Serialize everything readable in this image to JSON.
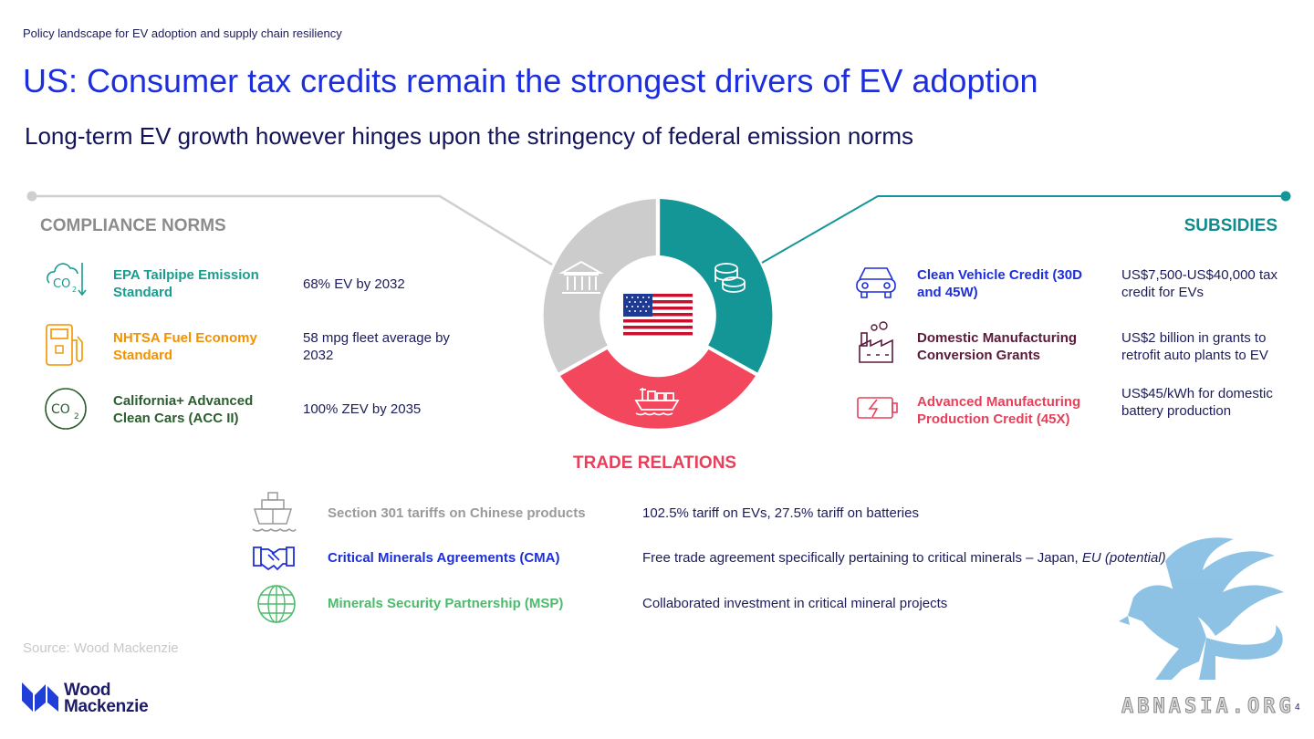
{
  "header": {
    "kicker": "Policy landscape for EV adoption and supply chain resiliency",
    "title": "US: Consumer tax credits remain the strongest drivers of EV adoption",
    "subtitle": "Long-term EV growth however hinges upon the stringency of federal emission norms"
  },
  "compliance": {
    "heading": "COMPLIANCE NORMS",
    "color": "#8c8c8c",
    "items": [
      {
        "icon": "co2-down-icon",
        "label": "EPA Tailpipe Emission Standard",
        "value": "68% EV by 2032",
        "color": "#1a9c8f"
      },
      {
        "icon": "fuel-pump-icon",
        "label": "NHTSA Fuel Economy Standard",
        "value": "58 mpg fleet average by 2032",
        "color": "#f39200"
      },
      {
        "icon": "co2-circle-icon",
        "label": "California+ Advanced Clean Cars (ACC II)",
        "value": "100% ZEV by 2035",
        "color": "#2b5e2f"
      }
    ]
  },
  "subsidies": {
    "heading": "SUBSIDIES",
    "color": "#0f8d8d",
    "items": [
      {
        "icon": "car-icon",
        "label": "Clean Vehicle Credit (30D and 45W)",
        "value": "US$7,500-US$40,000 tax credit for EVs",
        "color": "#1d2fdd"
      },
      {
        "icon": "factory-icon",
        "label": "Domestic Manufacturing Conversion Grants",
        "value": "US$2 billion in grants to retrofit auto plants to EV",
        "color": "#5a1a3a"
      },
      {
        "icon": "battery-charging-icon",
        "label": "Advanced Manufacturing Production Credit (45X)",
        "value": "US$45/kWh for domestic battery production",
        "color": "#e8405a"
      }
    ]
  },
  "trade": {
    "heading": "TRADE RELATIONS",
    "color": "#e8405a",
    "items": [
      {
        "icon": "ship-icon",
        "label": "Section 301 tariffs on Chinese products",
        "value": "102.5% tariff on EVs, 27.5% tariff on batteries",
        "color": "#9a9a9a"
      },
      {
        "icon": "handshake-icon",
        "label": "Critical Minerals Agreements (CMA)",
        "value": "Free trade agreement specifically pertaining to critical minerals – Japan,",
        "value_em": "EU (potential)",
        "color": "#1d2fdd"
      },
      {
        "icon": "globe-icon",
        "label": "Minerals Security Partnership (MSP)",
        "value": "Collaborated investment in critical mineral projects",
        "color": "#4cbb6c"
      }
    ]
  },
  "donut": {
    "segments": [
      {
        "name": "subsidies",
        "color": "#149696",
        "icon": "coins-icon"
      },
      {
        "name": "trade",
        "color": "#f2475c",
        "icon": "cargo-ship-icon"
      },
      {
        "name": "compliance",
        "color": "#cccccc",
        "icon": "government-building-icon"
      }
    ],
    "center_icon": "us-flag-icon"
  },
  "footer": {
    "source": "Source: Wood Mackenzie",
    "logo_line1": "Wood",
    "logo_line2": "Mackenzie",
    "watermark": "ABNASIA.ORG",
    "page": "4"
  }
}
